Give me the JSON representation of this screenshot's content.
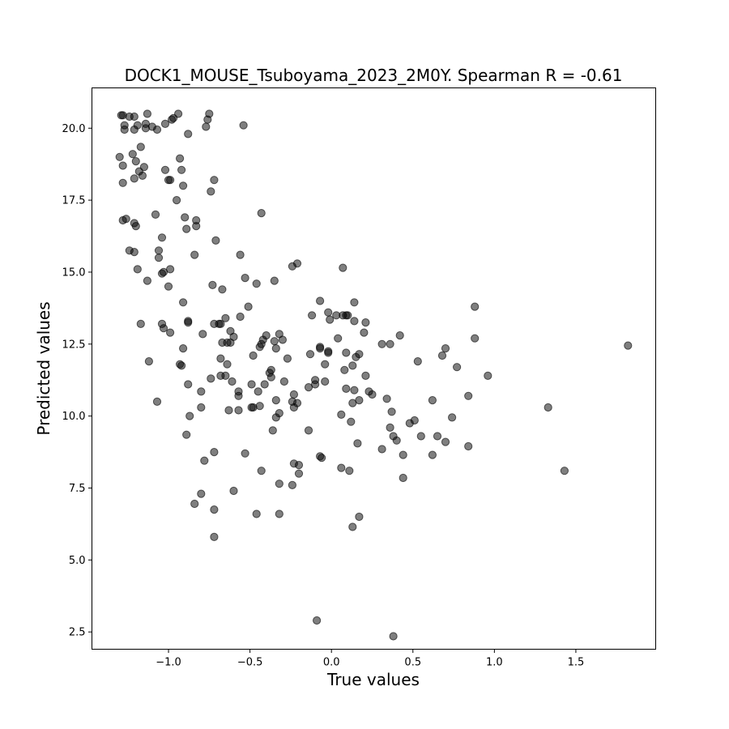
{
  "chart_data": {
    "type": "scatter",
    "title": "DOCK1_MOUSE_Tsuboyama_2023_2M0Y. Spearman R = -0.61",
    "xlabel": "True values",
    "ylabel": "Predicted values",
    "xlim": [
      -1.47,
      1.99
    ],
    "ylim": [
      1.9,
      21.4
    ],
    "xticks": [
      -1.0,
      -0.5,
      0.0,
      0.5,
      1.0,
      1.5
    ],
    "xtick_labels": [
      "−1.0",
      "−0.5",
      "0.0",
      "0.5",
      "1.0",
      "1.5"
    ],
    "yticks": [
      2.5,
      5.0,
      7.5,
      10.0,
      12.5,
      15.0,
      17.5,
      20.0
    ],
    "ytick_labels": [
      "2.5",
      "5.0",
      "7.5",
      "10.0",
      "12.5",
      "15.0",
      "17.5",
      "20.0"
    ],
    "grid": false,
    "marker_color": "#000000",
    "marker_alpha": 0.5,
    "points": [
      [
        -1.29,
        20.45
      ],
      [
        -1.28,
        20.45
      ],
      [
        -1.27,
        20.1
      ],
      [
        -1.27,
        19.95
      ],
      [
        -1.24,
        20.4
      ],
      [
        -1.21,
        20.4
      ],
      [
        -1.21,
        19.95
      ],
      [
        -1.19,
        20.1
      ],
      [
        -1.14,
        20.15
      ],
      [
        -1.14,
        20.0
      ],
      [
        -1.13,
        20.5
      ],
      [
        -1.1,
        20.05
      ],
      [
        -1.07,
        19.95
      ],
      [
        -1.02,
        20.15
      ],
      [
        -0.98,
        20.3
      ],
      [
        -0.97,
        20.35
      ],
      [
        -0.94,
        20.5
      ],
      [
        -0.77,
        20.05
      ],
      [
        -0.76,
        20.3
      ],
      [
        -0.75,
        20.5
      ],
      [
        -0.54,
        20.1
      ],
      [
        -0.88,
        19.8
      ],
      [
        -1.3,
        19.0
      ],
      [
        -1.28,
        18.7
      ],
      [
        -1.22,
        19.1
      ],
      [
        -1.2,
        18.85
      ],
      [
        -1.17,
        19.35
      ],
      [
        -1.15,
        18.65
      ],
      [
        -1.18,
        18.5
      ],
      [
        -1.16,
        18.35
      ],
      [
        -1.21,
        18.25
      ],
      [
        -1.28,
        18.1
      ],
      [
        -1.02,
        18.55
      ],
      [
        -1.0,
        18.2
      ],
      [
        -0.99,
        18.2
      ],
      [
        -0.93,
        18.95
      ],
      [
        -0.92,
        18.55
      ],
      [
        -0.91,
        18.0
      ],
      [
        -0.72,
        18.2
      ],
      [
        -0.74,
        17.8
      ],
      [
        -0.95,
        17.5
      ],
      [
        -1.28,
        16.8
      ],
      [
        -1.26,
        16.85
      ],
      [
        -1.21,
        16.7
      ],
      [
        -1.2,
        16.6
      ],
      [
        -1.08,
        17.0
      ],
      [
        -1.04,
        16.2
      ],
      [
        -0.9,
        16.9
      ],
      [
        -0.89,
        16.5
      ],
      [
        -0.83,
        16.8
      ],
      [
        -0.83,
        16.6
      ],
      [
        -0.71,
        16.1
      ],
      [
        -0.43,
        17.05
      ],
      [
        -1.24,
        15.75
      ],
      [
        -1.21,
        15.7
      ],
      [
        -1.19,
        15.1
      ],
      [
        -1.13,
        14.7
      ],
      [
        -1.06,
        15.75
      ],
      [
        -1.06,
        15.5
      ],
      [
        -1.04,
        14.95
      ],
      [
        -1.03,
        15.0
      ],
      [
        -0.99,
        15.1
      ],
      [
        -1.0,
        14.5
      ],
      [
        -0.84,
        15.6
      ],
      [
        -0.73,
        14.55
      ],
      [
        -0.67,
        14.4
      ],
      [
        -0.56,
        15.6
      ],
      [
        -0.53,
        14.8
      ],
      [
        -0.46,
        14.6
      ],
      [
        -0.35,
        14.7
      ],
      [
        -0.24,
        15.2
      ],
      [
        -0.21,
        15.3
      ],
      [
        0.07,
        15.15
      ],
      [
        -1.17,
        13.2
      ],
      [
        -1.04,
        13.2
      ],
      [
        -1.03,
        13.05
      ],
      [
        -0.99,
        12.9
      ],
      [
        -0.91,
        13.95
      ],
      [
        -0.88,
        13.3
      ],
      [
        -0.88,
        13.25
      ],
      [
        -0.72,
        13.2
      ],
      [
        -0.69,
        13.2
      ],
      [
        -0.68,
        13.2
      ],
      [
        -0.65,
        13.4
      ],
      [
        -0.62,
        12.95
      ],
      [
        -0.6,
        12.75
      ],
      [
        -0.56,
        13.45
      ],
      [
        -0.51,
        13.8
      ],
      [
        -0.79,
        12.85
      ],
      [
        -0.67,
        12.55
      ],
      [
        -0.64,
        12.55
      ],
      [
        -0.62,
        12.55
      ],
      [
        -0.43,
        12.5
      ],
      [
        -0.42,
        12.65
      ],
      [
        -0.4,
        12.8
      ],
      [
        -0.35,
        12.6
      ],
      [
        -0.32,
        12.85
      ],
      [
        -0.3,
        12.65
      ],
      [
        -0.34,
        12.35
      ],
      [
        -0.44,
        12.4
      ],
      [
        -1.12,
        11.9
      ],
      [
        -0.93,
        11.8
      ],
      [
        -0.92,
        11.75
      ],
      [
        -0.91,
        12.35
      ],
      [
        -0.68,
        12.0
      ],
      [
        -0.64,
        11.8
      ],
      [
        -0.68,
        11.4
      ],
      [
        -0.65,
        11.4
      ],
      [
        -0.74,
        11.3
      ],
      [
        -0.61,
        11.2
      ],
      [
        -0.48,
        12.1
      ],
      [
        -0.37,
        11.6
      ],
      [
        -0.38,
        11.5
      ],
      [
        -0.37,
        11.35
      ],
      [
        -0.41,
        11.1
      ],
      [
        -0.29,
        11.2
      ],
      [
        -0.27,
        12.0
      ],
      [
        -0.13,
        12.15
      ],
      [
        -0.07,
        12.4
      ],
      [
        -0.04,
        11.8
      ],
      [
        -0.02,
        12.2
      ],
      [
        -0.02,
        12.25
      ],
      [
        -0.07,
        14.0
      ],
      [
        -0.12,
        13.5
      ],
      [
        -0.02,
        13.6
      ],
      [
        -0.01,
        13.35
      ],
      [
        0.03,
        13.5
      ],
      [
        0.07,
        13.5
      ],
      [
        0.09,
        13.5
      ],
      [
        0.1,
        13.5
      ],
      [
        0.14,
        13.95
      ],
      [
        0.14,
        13.3
      ],
      [
        0.21,
        13.25
      ],
      [
        0.04,
        12.7
      ],
      [
        0.09,
        12.2
      ],
      [
        0.15,
        12.05
      ],
      [
        0.17,
        12.15
      ],
      [
        0.2,
        12.9
      ],
      [
        0.31,
        12.5
      ],
      [
        0.36,
        12.5
      ],
      [
        0.42,
        12.8
      ],
      [
        0.13,
        11.75
      ],
      [
        0.53,
        11.9
      ],
      [
        0.68,
        12.1
      ],
      [
        0.7,
        12.35
      ],
      [
        0.77,
        11.7
      ],
      [
        0.88,
        13.8
      ],
      [
        0.88,
        12.7
      ],
      [
        1.82,
        12.45
      ],
      [
        -0.07,
        12.35
      ],
      [
        -0.14,
        11.0
      ],
      [
        -0.1,
        11.1
      ],
      [
        -0.1,
        11.25
      ],
      [
        -0.04,
        11.2
      ],
      [
        0.08,
        11.6
      ],
      [
        0.09,
        10.95
      ],
      [
        0.14,
        10.9
      ],
      [
        0.21,
        11.4
      ],
      [
        0.23,
        10.85
      ],
      [
        0.25,
        10.75
      ],
      [
        -0.23,
        10.75
      ],
      [
        -0.24,
        10.5
      ],
      [
        -0.23,
        10.3
      ],
      [
        -0.21,
        10.45
      ],
      [
        -1.07,
        10.5
      ],
      [
        -0.88,
        11.1
      ],
      [
        -0.87,
        10.0
      ],
      [
        -0.8,
        10.85
      ],
      [
        -0.8,
        10.3
      ],
      [
        -0.57,
        10.85
      ],
      [
        -0.57,
        10.7
      ],
      [
        -0.57,
        10.2
      ],
      [
        -0.63,
        10.2
      ],
      [
        -0.49,
        11.1
      ],
      [
        -0.45,
        10.85
      ],
      [
        -0.44,
        10.35
      ],
      [
        -0.49,
        10.3
      ],
      [
        -0.48,
        10.3
      ],
      [
        -0.34,
        10.55
      ],
      [
        -0.32,
        10.1
      ],
      [
        -0.34,
        9.95
      ],
      [
        -0.36,
        9.5
      ],
      [
        0.06,
        10.05
      ],
      [
        0.12,
        9.8
      ],
      [
        0.13,
        10.45
      ],
      [
        0.17,
        10.55
      ],
      [
        0.34,
        10.6
      ],
      [
        0.37,
        10.15
      ],
      [
        0.36,
        9.6
      ],
      [
        0.38,
        9.3
      ],
      [
        0.4,
        9.15
      ],
      [
        0.48,
        9.75
      ],
      [
        0.51,
        9.85
      ],
      [
        0.55,
        9.3
      ],
      [
        0.62,
        10.55
      ],
      [
        0.65,
        9.3
      ],
      [
        0.7,
        9.1
      ],
      [
        0.74,
        9.95
      ],
      [
        0.84,
        10.7
      ],
      [
        0.96,
        11.4
      ],
      [
        1.33,
        10.3
      ],
      [
        -0.89,
        9.35
      ],
      [
        -0.72,
        8.75
      ],
      [
        -0.78,
        8.45
      ],
      [
        -0.53,
        8.7
      ],
      [
        -0.43,
        8.1
      ],
      [
        -0.14,
        9.5
      ],
      [
        -0.23,
        8.35
      ],
      [
        -0.2,
        8.3
      ],
      [
        -0.2,
        8.0
      ],
      [
        -0.07,
        8.6
      ],
      [
        -0.06,
        8.55
      ],
      [
        0.06,
        8.2
      ],
      [
        0.11,
        8.1
      ],
      [
        0.16,
        9.05
      ],
      [
        0.31,
        8.85
      ],
      [
        0.44,
        8.65
      ],
      [
        0.62,
        8.65
      ],
      [
        0.84,
        8.95
      ],
      [
        1.43,
        8.1
      ],
      [
        0.44,
        7.85
      ],
      [
        -0.8,
        7.3
      ],
      [
        -0.84,
        6.95
      ],
      [
        -0.72,
        6.75
      ],
      [
        -0.6,
        7.4
      ],
      [
        -0.46,
        6.6
      ],
      [
        -0.32,
        7.65
      ],
      [
        -0.24,
        7.6
      ],
      [
        -0.32,
        6.6
      ],
      [
        0.17,
        6.5
      ],
      [
        0.13,
        6.15
      ],
      [
        -0.72,
        5.8
      ],
      [
        -0.09,
        2.9
      ],
      [
        0.38,
        2.35
      ]
    ]
  }
}
